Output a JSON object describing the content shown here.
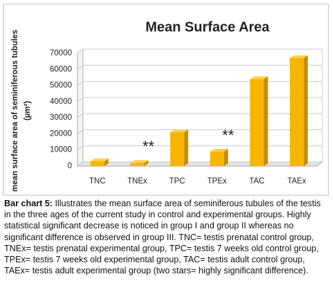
{
  "chart_data": {
    "type": "bar",
    "title": "Mean Surface Area",
    "y_label": [
      "mean surface area of seminiferous tubules",
      "(µm²)"
    ],
    "categories": [
      "TNC",
      "TNEx",
      "TPC",
      "TPEx",
      "TAC",
      "TAEx"
    ],
    "values": [
      3000,
      2000,
      21000,
      9000,
      54000,
      67000
    ],
    "color": "#f7b500",
    "ylim": [
      0,
      70000
    ],
    "yticks": [
      0,
      10000,
      20000,
      30000,
      40000,
      50000,
      60000,
      70000
    ],
    "grid": true,
    "annotations": [
      {
        "text": "**",
        "at": "TNEx"
      },
      {
        "text": "**",
        "at": "TPEx"
      }
    ]
  },
  "caption": {
    "label": "Bar chart 5:",
    "text": "Illustrates the mean surface area of seminiferous tubules of the testis in the three ages of the current study in control and experimental groups. Highly statistical significant decrease is noticed in group I and group II whereas no significant difference is observed in group III. TNC= testis prenatal control group, TNEx= testis prenatal experimental group, TPC= testis 7 weeks old control group, TPEx= testis 7 weeks old experimental group, TAC= testis adult control group, TAEx= testis adult experimental group (two stars= highly significant difference)."
  }
}
